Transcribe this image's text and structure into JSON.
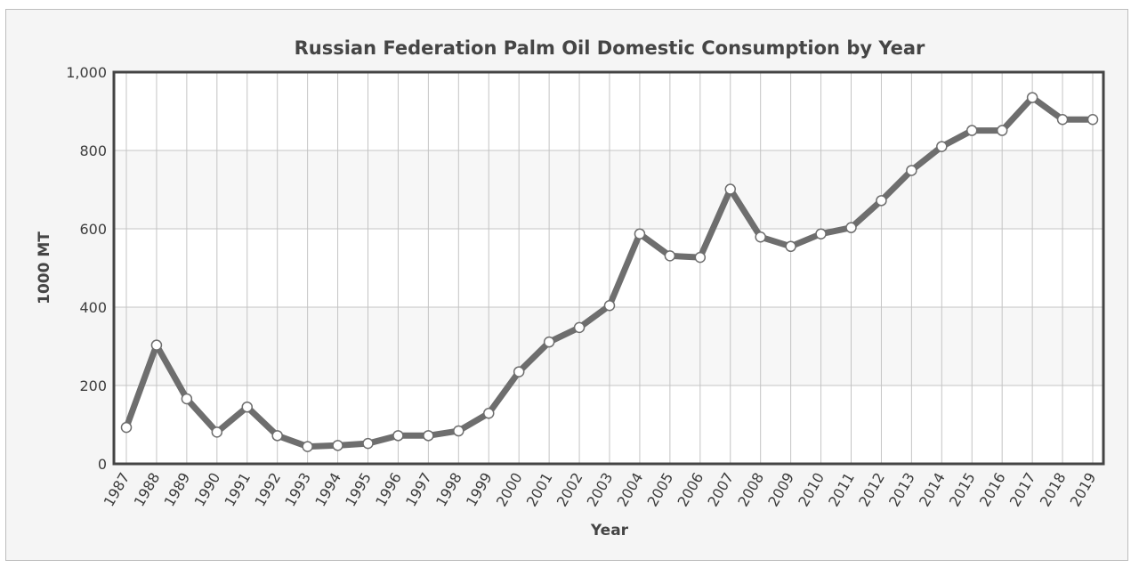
{
  "chart_data": {
    "type": "line",
    "title": "Russian Federation Palm Oil Domestic Consumption by Year",
    "xlabel": "Year",
    "ylabel": "1000 MT",
    "ylim": [
      0,
      1000
    ],
    "yticks": [
      "0",
      "200",
      "400",
      "600",
      "800",
      "1,000"
    ],
    "grid": true,
    "legend": "none",
    "categories": [
      "1987",
      "1988",
      "1989",
      "1990",
      "1991",
      "1992",
      "1993",
      "1994",
      "1995",
      "1996",
      "1997",
      "1998",
      "1999",
      "2000",
      "2001",
      "2002",
      "2003",
      "2004",
      "2005",
      "2006",
      "2007",
      "2008",
      "2009",
      "2010",
      "2011",
      "2012",
      "2013",
      "2014",
      "2015",
      "2016",
      "2017",
      "2018",
      "2019"
    ],
    "series": [
      {
        "values": [
          93,
          303,
          166,
          81,
          145,
          72,
          44,
          47,
          52,
          72,
          72,
          84,
          129,
          235,
          311,
          348,
          404,
          587,
          531,
          527,
          701,
          579,
          555,
          587,
          603,
          672,
          749,
          810,
          851,
          851,
          935,
          879,
          879
        ],
        "color": "#6e6e6e"
      }
    ]
  }
}
